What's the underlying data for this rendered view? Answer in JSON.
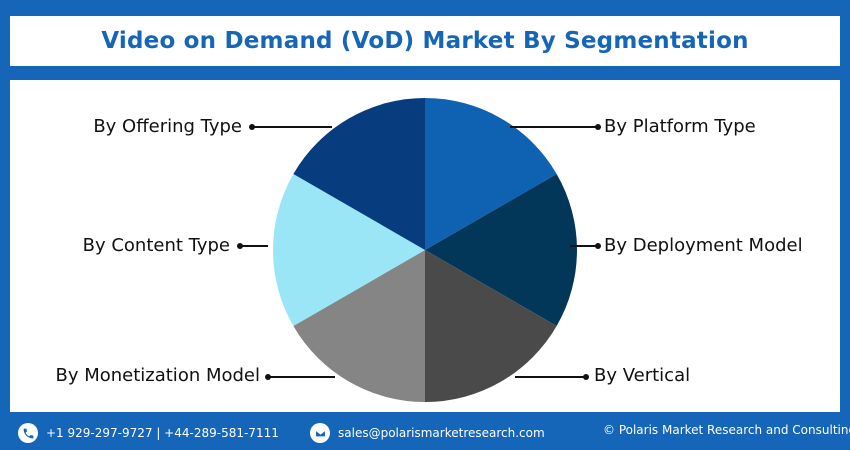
{
  "title": "Video on Demand (VoD) Market By Segmentation",
  "segments": [
    {
      "label": "By Platform Type",
      "color": "#0f62b2"
    },
    {
      "label": "By Deployment Model",
      "color": "#03375a"
    },
    {
      "label": "By Vertical",
      "color": "#4a4a4a"
    },
    {
      "label": "By Monetization Model",
      "color": "#858585"
    },
    {
      "label": "By Content Type",
      "color": "#9be6f6"
    },
    {
      "label": "By Offering Type",
      "color": "#073c7e"
    }
  ],
  "footer": {
    "phone": "+1 929-297-9727 | +44-289-581-7111",
    "email": "sales@polarismarketresearch.com",
    "copyright": "© Polaris Market Research and Consulting LLP"
  },
  "icons": {
    "phone": "phone-icon",
    "email": "email-icon"
  },
  "colors": {
    "brand": "#1565b8",
    "background": "#ffffff"
  }
}
